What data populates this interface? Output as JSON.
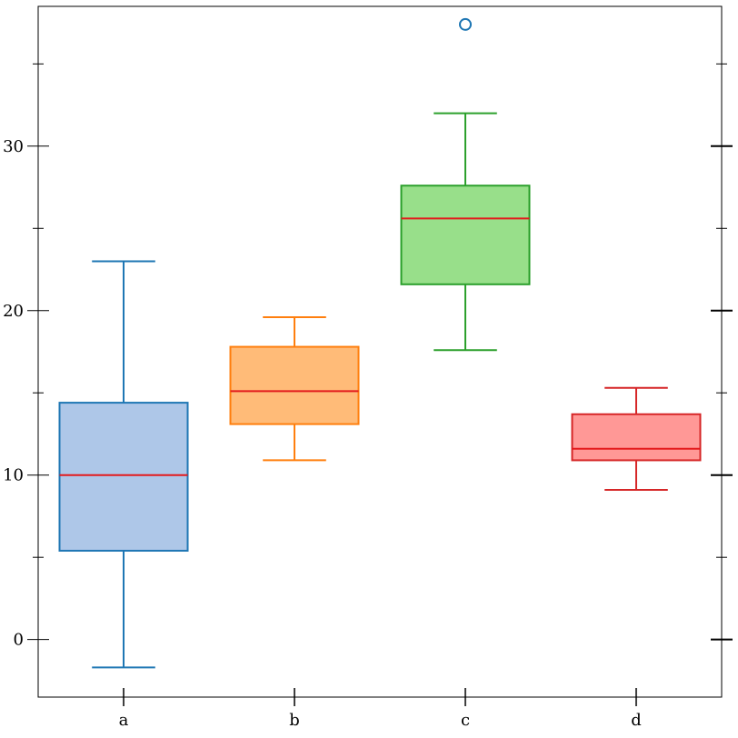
{
  "chart_data": {
    "type": "box",
    "title": "",
    "xlabel": "",
    "ylabel": "",
    "categories": [
      "a",
      "b",
      "c",
      "d"
    ],
    "ylim": [
      -3.5,
      38.5
    ],
    "yticks": [
      0,
      10,
      20,
      30
    ],
    "y_tick_labels": [
      "0",
      "10",
      "20",
      "30"
    ],
    "y_minor_ticks": [
      5,
      15,
      25,
      35
    ],
    "grid": false,
    "boxes": [
      {
        "category": "a",
        "whisker_low": -1.7,
        "q1": 5.4,
        "median": 10.0,
        "q3": 14.4,
        "whisker_high": 23.0,
        "outliers": [],
        "fill": "#aec7e8",
        "stroke": "#1f77b4"
      },
      {
        "category": "b",
        "whisker_low": 10.9,
        "q1": 13.1,
        "median": 15.1,
        "q3": 17.8,
        "whisker_high": 19.6,
        "outliers": [],
        "fill": "#ffbb78",
        "stroke": "#ff7f0e"
      },
      {
        "category": "c",
        "whisker_low": 17.6,
        "q1": 21.6,
        "median": 25.6,
        "q3": 27.6,
        "whisker_high": 32.0,
        "outliers": [
          37.4
        ],
        "fill": "#98df8a",
        "stroke": "#2ca02c"
      },
      {
        "category": "d",
        "whisker_low": 9.1,
        "q1": 10.9,
        "median": 11.6,
        "q3": 13.7,
        "whisker_high": 15.3,
        "outliers": [],
        "fill": "#ff9896",
        "stroke": "#d62728"
      }
    ],
    "median_color": "#e31a1c",
    "outlier_color": "#1f77b4"
  }
}
